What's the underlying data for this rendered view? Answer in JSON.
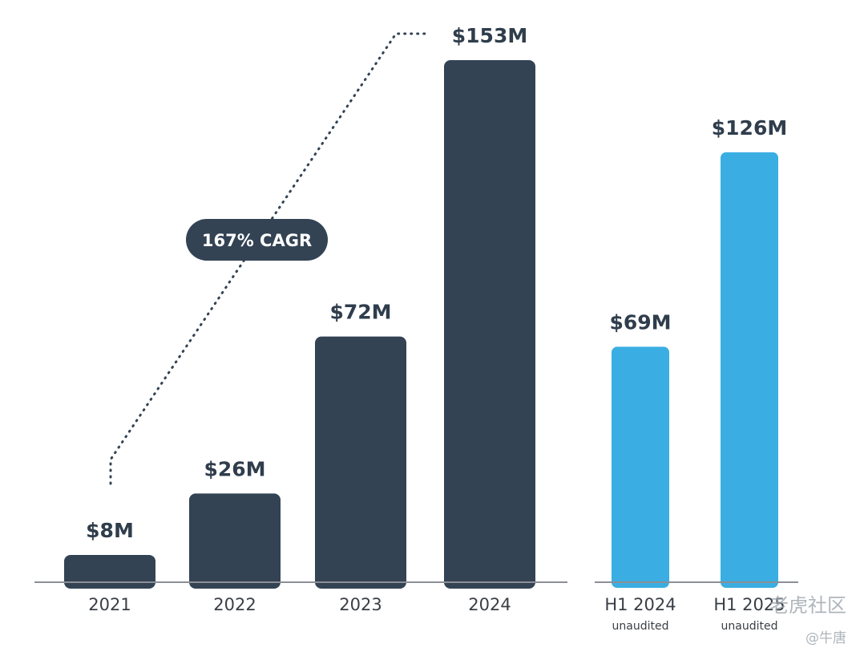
{
  "chart_data": [
    {
      "type": "bar",
      "categories": [
        "2021",
        "2022",
        "2023",
        "2024"
      ],
      "values": [
        8,
        26,
        72,
        153
      ],
      "value_labels": [
        "$8M",
        "$26M",
        "$72M",
        "$153M"
      ],
      "color": "#334354",
      "annotation": "167% CAGR"
    },
    {
      "type": "bar",
      "categories": [
        "H1 2024",
        "H1 2025"
      ],
      "sublabels": [
        "unaudited",
        "unaudited"
      ],
      "values": [
        69,
        126
      ],
      "value_labels": [
        "$69M",
        "$126M"
      ],
      "color": "#3aaee2"
    }
  ],
  "watermark": {
    "text": "老虎社区",
    "handle": "@牛唐"
  }
}
